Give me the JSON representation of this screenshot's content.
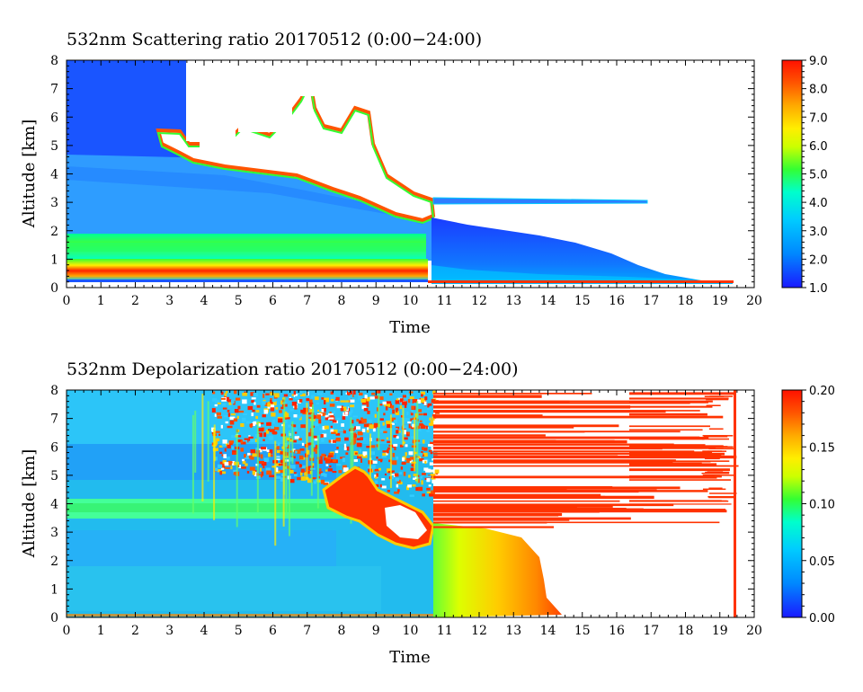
{
  "chart_data": [
    {
      "type": "heatmap",
      "title": "532nm Scattering ratio  20170512 (0:00−24:00)",
      "xlabel": "Time",
      "ylabel": "Altitude [km]",
      "xlim": [
        0,
        20
      ],
      "ylim": [
        0,
        8
      ],
      "x_ticks": [
        "0",
        "1",
        "2",
        "3",
        "4",
        "5",
        "6",
        "7",
        "8",
        "9",
        "10",
        "11",
        "12",
        "13",
        "14",
        "15",
        "16",
        "17",
        "18",
        "19",
        "20"
      ],
      "y_ticks": [
        "0",
        "1",
        "2",
        "3",
        "4",
        "5",
        "6",
        "7",
        "8"
      ],
      "colorbar": {
        "range": [
          1.0,
          9.0
        ],
        "ticks": [
          "1.0",
          "2.0",
          "3.0",
          "4.0",
          "5.0",
          "6.0",
          "7.0",
          "8.0",
          "9.0"
        ]
      },
      "features": [
        {
          "name": "surface layer",
          "x_range": [
            0,
            10.5
          ],
          "altitude_km": [
            0.2,
            0.7
          ],
          "value": 7.5
        },
        {
          "name": "boundary layer",
          "x_range": [
            0,
            10.5
          ],
          "altitude_km": [
            0.7,
            1.9
          ],
          "value": 4.0
        },
        {
          "name": "dust layer",
          "x_range": [
            0,
            10.5
          ],
          "altitude_km": [
            1.9,
            4.7
          ],
          "value": 2.8
        },
        {
          "name": "cloud (saturated)",
          "x_range": [
            3.0,
            10.8
          ],
          "altitude_km": [
            3.0,
            7.0
          ],
          "value": 9.0
        },
        {
          "name": "thin layer",
          "x_range": [
            10.8,
            16.9
          ],
          "altitude_km": [
            3.0,
            3.1
          ],
          "value": 2.0
        },
        {
          "name": "decaying aerosol",
          "x_range": [
            10.6,
            19.4
          ],
          "altitude_km": [
            0.2,
            2.4
          ],
          "value": 1.6
        }
      ],
      "colors": [
        "#1a1aff",
        "#00aaff",
        "#00ffcc",
        "#33ff33",
        "#ffff00",
        "#ffaa00",
        "#ff4400",
        "#ff0000"
      ]
    },
    {
      "type": "heatmap",
      "title": "532nm Depolarization ratio  20170512 (0:00−24:00)",
      "xlabel": "Time",
      "ylabel": "Altitude [km]",
      "xlim": [
        0,
        20
      ],
      "ylim": [
        0,
        8
      ],
      "x_ticks": [
        "0",
        "1",
        "2",
        "3",
        "4",
        "5",
        "6",
        "7",
        "8",
        "9",
        "10",
        "11",
        "12",
        "13",
        "14",
        "15",
        "16",
        "17",
        "18",
        "19",
        "20"
      ],
      "y_ticks": [
        "0",
        "1",
        "2",
        "3",
        "4",
        "5",
        "6",
        "7",
        "8"
      ],
      "colorbar": {
        "range": [
          0.0,
          0.2
        ],
        "ticks": [
          "0.00",
          "0.05",
          "0.10",
          "0.15",
          "0.20"
        ]
      },
      "features": [
        {
          "name": "background aerosol",
          "x_range": [
            0,
            10.5
          ],
          "altitude_km": [
            0,
            8
          ],
          "value": 0.05
        },
        {
          "name": "dust layer",
          "x_range": [
            0,
            10.5
          ],
          "altitude_km": [
            3.6,
            4.2
          ],
          "value": 0.09
        },
        {
          "name": "noisy upper region",
          "x_range": [
            4.3,
            10.8
          ],
          "altitude_km": [
            6.0,
            8.0
          ],
          "value": 0.2
        },
        {
          "name": "depolarizing cloud",
          "x_range": [
            7.5,
            10.3
          ],
          "altitude_km": [
            2.7,
            5.2
          ],
          "value": 0.2
        },
        {
          "name": "lower region after 10.5",
          "x_range": [
            10.5,
            14.5
          ],
          "altitude_km": [
            0,
            3.0
          ],
          "value": 0.14
        },
        {
          "name": "upper streaks",
          "x_range": [
            10.8,
            19.5
          ],
          "altitude_km": [
            3.0,
            8.0
          ],
          "value": 0.2
        }
      ]
    }
  ]
}
